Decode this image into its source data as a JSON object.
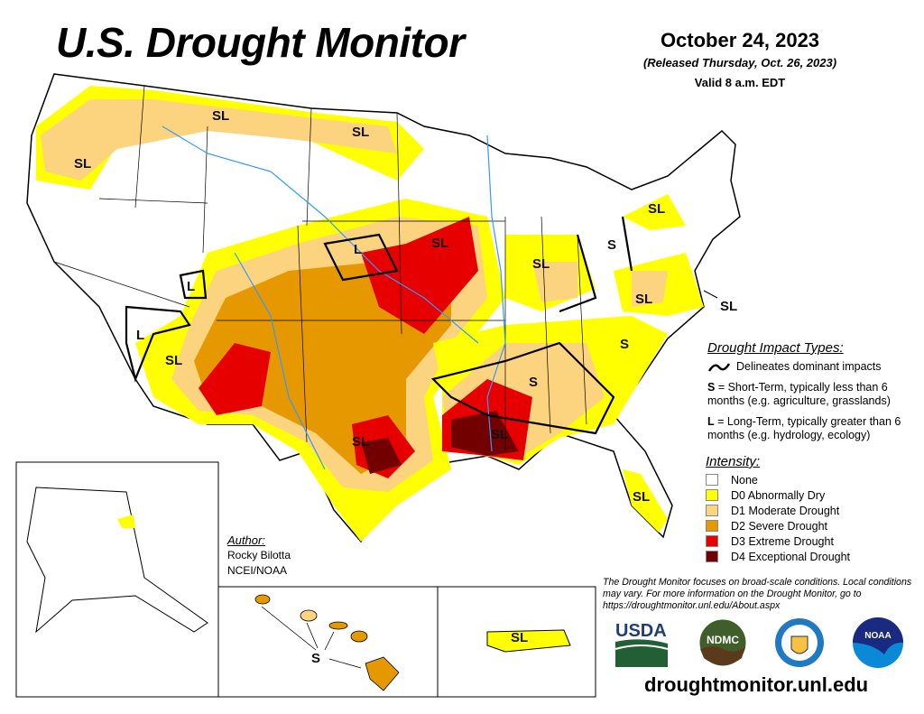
{
  "header": {
    "title": "U.S. Drought Monitor",
    "date": "October 24, 2023",
    "released": "(Released Thursday, Oct. 26, 2023)",
    "valid": "Valid 8 a.m. EDT"
  },
  "map_labels": [
    "SL",
    "SL",
    "SL",
    "SL",
    "L",
    "SL",
    "S",
    "SL",
    "L",
    "SL",
    "SL",
    "L",
    "SL",
    "S",
    "S",
    "SL",
    "SL",
    "SL",
    "S",
    "SL"
  ],
  "impact_types": {
    "title": "Drought Impact Types:",
    "line_desc": "Delineates dominant impacts",
    "short_key": "S",
    "short_desc": " = Short-Term, typically less than 6 months (e.g. agriculture, grasslands)",
    "long_key": "L",
    "long_desc": " = Long-Term, typically greater than 6 months (e.g. hydrology, ecology)"
  },
  "intensity": {
    "title": "Intensity:",
    "items": [
      {
        "label": "None",
        "color": "#ffffff"
      },
      {
        "label": "D0 Abnormally Dry",
        "color": "#ffff00"
      },
      {
        "label": "D1 Moderate Drought",
        "color": "#fcd37f"
      },
      {
        "label": "D2 Severe Drought",
        "color": "#e69800"
      },
      {
        "label": "D3 Extreme Drought",
        "color": "#e60000"
      },
      {
        "label": "D4 Exceptional Drought",
        "color": "#730000"
      }
    ]
  },
  "author": {
    "heading": "Author:",
    "name": "Rocky Bilotta",
    "org": "NCEI/NOAA"
  },
  "note": "The Drought Monitor focuses on broad-scale conditions. Local conditions may vary. For more information on the Drought Monitor, go to https://droughtmonitor.unl.edu/About.aspx",
  "logos": {
    "usda": "USDA",
    "ndmc": "NDMC",
    "commerce": "Department of Commerce",
    "noaa": "NOAA"
  },
  "url": "droughtmonitor.unl.edu"
}
